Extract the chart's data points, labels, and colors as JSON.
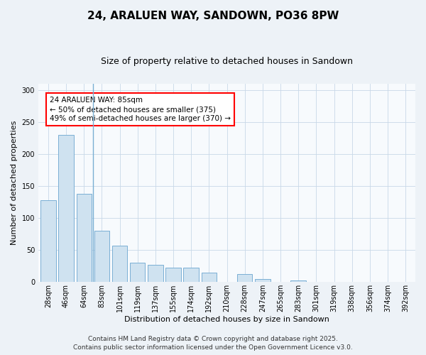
{
  "title": "24, ARALUEN WAY, SANDOWN, PO36 8PW",
  "subtitle": "Size of property relative to detached houses in Sandown",
  "xlabel": "Distribution of detached houses by size in Sandown",
  "ylabel": "Number of detached properties",
  "categories": [
    "28sqm",
    "46sqm",
    "64sqm",
    "83sqm",
    "101sqm",
    "119sqm",
    "137sqm",
    "155sqm",
    "174sqm",
    "192sqm",
    "210sqm",
    "228sqm",
    "247sqm",
    "265sqm",
    "283sqm",
    "301sqm",
    "319sqm",
    "338sqm",
    "356sqm",
    "374sqm",
    "392sqm"
  ],
  "values": [
    128,
    230,
    138,
    80,
    57,
    30,
    27,
    22,
    22,
    15,
    0,
    13,
    5,
    0,
    2,
    0,
    0,
    0,
    0,
    0,
    0
  ],
  "bar_color": "#cfe2f0",
  "bar_edge_color": "#7aafd4",
  "vline_index": 2,
  "vline_color": "#7aafd4",
  "annotation_text": "24 ARALUEN WAY: 85sqm\n← 50% of detached houses are smaller (375)\n49% of semi-detached houses are larger (370) →",
  "annotation_box_facecolor": "white",
  "annotation_box_edgecolor": "red",
  "ylim": [
    0,
    310
  ],
  "yticks": [
    0,
    50,
    100,
    150,
    200,
    250,
    300
  ],
  "footer_line1": "Contains HM Land Registry data © Crown copyright and database right 2025.",
  "footer_line2": "Contains public sector information licensed under the Open Government Licence v3.0.",
  "bg_color": "#edf2f7",
  "plot_bg_color": "#f7fafd",
  "grid_color": "#c8d8e8",
  "title_fontsize": 11,
  "subtitle_fontsize": 9,
  "axis_label_fontsize": 8,
  "tick_fontsize": 7,
  "annotation_fontsize": 7.5,
  "footer_fontsize": 6.5
}
